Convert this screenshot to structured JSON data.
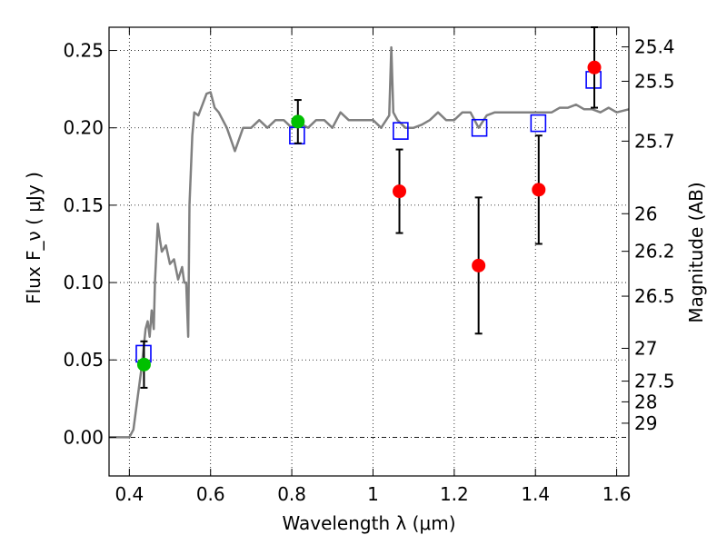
{
  "chart_data": {
    "type": "scatter",
    "xlabel": "Wavelength  λ (μm)",
    "ylabel": "Flux  F_ν  ( μJy )",
    "ylabel_right": "Magnitude (AB)",
    "xlim": [
      0.35,
      1.63
    ],
    "ylim": [
      -0.025,
      0.265
    ],
    "grid": true,
    "x_ticks": [
      0.4,
      0.6,
      0.8,
      1.0,
      1.2,
      1.4,
      1.6
    ],
    "x_tick_labels": [
      "0.4",
      "0.6",
      "0.8",
      "1",
      "1.2",
      "1.4",
      "1.6"
    ],
    "y_ticks": [
      0.0,
      0.05,
      0.1,
      0.15,
      0.2,
      0.25
    ],
    "y_tick_labels": [
      "0.00",
      "0.05",
      "0.10",
      "0.15",
      "0.20",
      "0.25"
    ],
    "right_ticks": [
      {
        "flux": 0.2523,
        "label": "25.4"
      },
      {
        "flux": 0.2301,
        "label": "25.5"
      },
      {
        "flux": 0.1914,
        "label": "25.7"
      },
      {
        "flux": 0.1445,
        "label": "26"
      },
      {
        "flux": 0.1202,
        "label": "26.2"
      },
      {
        "flux": 0.0912,
        "label": "26.5"
      },
      {
        "flux": 0.0575,
        "label": "27"
      },
      {
        "flux": 0.0363,
        "label": "27.5"
      },
      {
        "flux": 0.0229,
        "label": "28"
      },
      {
        "flux": 0.0091,
        "label": "29"
      }
    ],
    "series": [
      {
        "kind": "line",
        "color": "#808080",
        "x": [
          0.35,
          0.4,
          0.41,
          0.42,
          0.43,
          0.44,
          0.445,
          0.45,
          0.455,
          0.46,
          0.463,
          0.47,
          0.475,
          0.48,
          0.49,
          0.5,
          0.51,
          0.52,
          0.53,
          0.535,
          0.54,
          0.545,
          0.548,
          0.555,
          0.56,
          0.57,
          0.58,
          0.59,
          0.6,
          0.61,
          0.62,
          0.64,
          0.66,
          0.68,
          0.7,
          0.72,
          0.74,
          0.76,
          0.78,
          0.8,
          0.82,
          0.84,
          0.86,
          0.88,
          0.9,
          0.92,
          0.94,
          0.96,
          0.98,
          1.0,
          1.02,
          1.04,
          1.045,
          1.05,
          1.06,
          1.08,
          1.1,
          1.12,
          1.14,
          1.16,
          1.18,
          1.2,
          1.22,
          1.24,
          1.26,
          1.28,
          1.3,
          1.32,
          1.34,
          1.36,
          1.38,
          1.4,
          1.42,
          1.44,
          1.46,
          1.48,
          1.5,
          1.52,
          1.54,
          1.56,
          1.58,
          1.6,
          1.63
        ],
        "y": [
          0.0,
          0.0,
          0.005,
          0.025,
          0.045,
          0.07,
          0.075,
          0.065,
          0.082,
          0.07,
          0.1,
          0.138,
          0.128,
          0.12,
          0.124,
          0.112,
          0.115,
          0.102,
          0.11,
          0.1,
          0.1,
          0.065,
          0.15,
          0.195,
          0.21,
          0.208,
          0.215,
          0.222,
          0.223,
          0.213,
          0.21,
          0.2,
          0.185,
          0.2,
          0.2,
          0.205,
          0.2,
          0.205,
          0.205,
          0.2,
          0.203,
          0.2,
          0.205,
          0.205,
          0.2,
          0.21,
          0.205,
          0.205,
          0.205,
          0.205,
          0.2,
          0.208,
          0.252,
          0.21,
          0.205,
          0.2,
          0.2,
          0.202,
          0.205,
          0.21,
          0.205,
          0.205,
          0.21,
          0.21,
          0.2,
          0.208,
          0.21,
          0.21,
          0.21,
          0.21,
          0.21,
          0.21,
          0.21,
          0.21,
          0.213,
          0.213,
          0.215,
          0.212,
          0.212,
          0.21,
          0.213,
          0.21,
          0.212
        ]
      },
      {
        "kind": "model-squares",
        "color": "#0000ff",
        "x": [
          0.435,
          0.813,
          1.068,
          1.262,
          1.407,
          1.543
        ],
        "y": [
          0.054,
          0.195,
          0.198,
          0.2,
          0.203,
          0.231
        ]
      },
      {
        "kind": "observed-green",
        "color": "#00c000",
        "points": [
          {
            "x": 0.436,
            "y": 0.047,
            "err": 0.015
          },
          {
            "x": 0.815,
            "y": 0.204,
            "err": 0.014
          }
        ]
      },
      {
        "kind": "observed-red",
        "color": "#ff0000",
        "points": [
          {
            "x": 1.065,
            "y": 0.159,
            "err": 0.027
          },
          {
            "x": 1.26,
            "y": 0.111,
            "err": 0.044
          },
          {
            "x": 1.408,
            "y": 0.16,
            "err": 0.035
          },
          {
            "x": 1.545,
            "y": 0.239,
            "err": 0.026
          }
        ]
      }
    ]
  }
}
